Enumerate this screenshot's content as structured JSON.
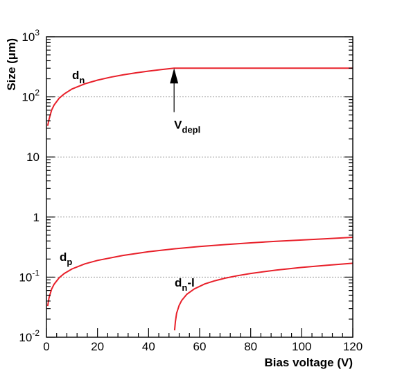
{
  "chart_data": {
    "type": "line",
    "xlabel": "Bias voltage (V)",
    "ylabel": "Size (μm)",
    "xlim": [
      0,
      120
    ],
    "ylim": [
      0.01,
      1000
    ],
    "yscale": "log",
    "grid": "horizontal dotted at decades",
    "x_ticks": [
      {
        "v": 0,
        "label": "0"
      },
      {
        "v": 20,
        "label": "20"
      },
      {
        "v": 40,
        "label": "40"
      },
      {
        "v": 60,
        "label": "60"
      },
      {
        "v": 80,
        "label": "80"
      },
      {
        "v": 100,
        "label": "100"
      },
      {
        "v": 120,
        "label": "120"
      }
    ],
    "y_ticks": [
      {
        "v": 0.01,
        "base": "10",
        "exp": "-2"
      },
      {
        "v": 0.1,
        "base": "10",
        "exp": "-1"
      },
      {
        "v": 1,
        "base": "1",
        "exp": ""
      },
      {
        "v": 10,
        "base": "10",
        "exp": ""
      },
      {
        "v": 100,
        "base": "10",
        "exp": "2"
      },
      {
        "v": 1000,
        "base": "10",
        "exp": "3"
      }
    ],
    "series": [
      {
        "label_main": "d",
        "label_sub": "n",
        "color": "#e8202a",
        "x": [
          0.5,
          1,
          2,
          3,
          5,
          7,
          10,
          15,
          20,
          25,
          30,
          35,
          40,
          45,
          50,
          60,
          70,
          80,
          90,
          100,
          110,
          120
        ],
        "y": [
          33,
          42,
          60,
          73,
          95,
          112,
          135,
          165,
          190,
          212,
          232,
          251,
          268,
          284,
          300,
          300,
          300,
          300,
          300,
          300,
          300,
          300
        ]
      },
      {
        "label_main": "d",
        "label_sub": "p",
        "color": "#e8202a",
        "x": [
          0.5,
          1,
          2,
          3,
          5,
          7,
          10,
          15,
          20,
          30,
          40,
          50,
          60,
          70,
          80,
          90,
          100,
          110,
          120
        ],
        "y": [
          0.033,
          0.045,
          0.063,
          0.076,
          0.098,
          0.115,
          0.137,
          0.166,
          0.19,
          0.23,
          0.265,
          0.296,
          0.323,
          0.348,
          0.372,
          0.395,
          0.415,
          0.436,
          0.46
        ]
      },
      {
        "label_main": "d",
        "label_sub": "n",
        "label_suffix": "-l",
        "color": "#e8202a",
        "x": [
          50.2,
          50.5,
          51,
          52,
          53,
          55,
          58,
          62,
          66,
          70,
          75,
          80,
          90,
          100,
          110,
          120
        ],
        "y": [
          0.013,
          0.018,
          0.025,
          0.034,
          0.041,
          0.052,
          0.064,
          0.077,
          0.087,
          0.096,
          0.106,
          0.115,
          0.131,
          0.145,
          0.158,
          0.17
        ]
      }
    ],
    "annotation": {
      "text_main": "V",
      "text_sub": "depl",
      "arrow_x": 50,
      "arrow_y": 300,
      "arrow_from_y": 100
    }
  }
}
